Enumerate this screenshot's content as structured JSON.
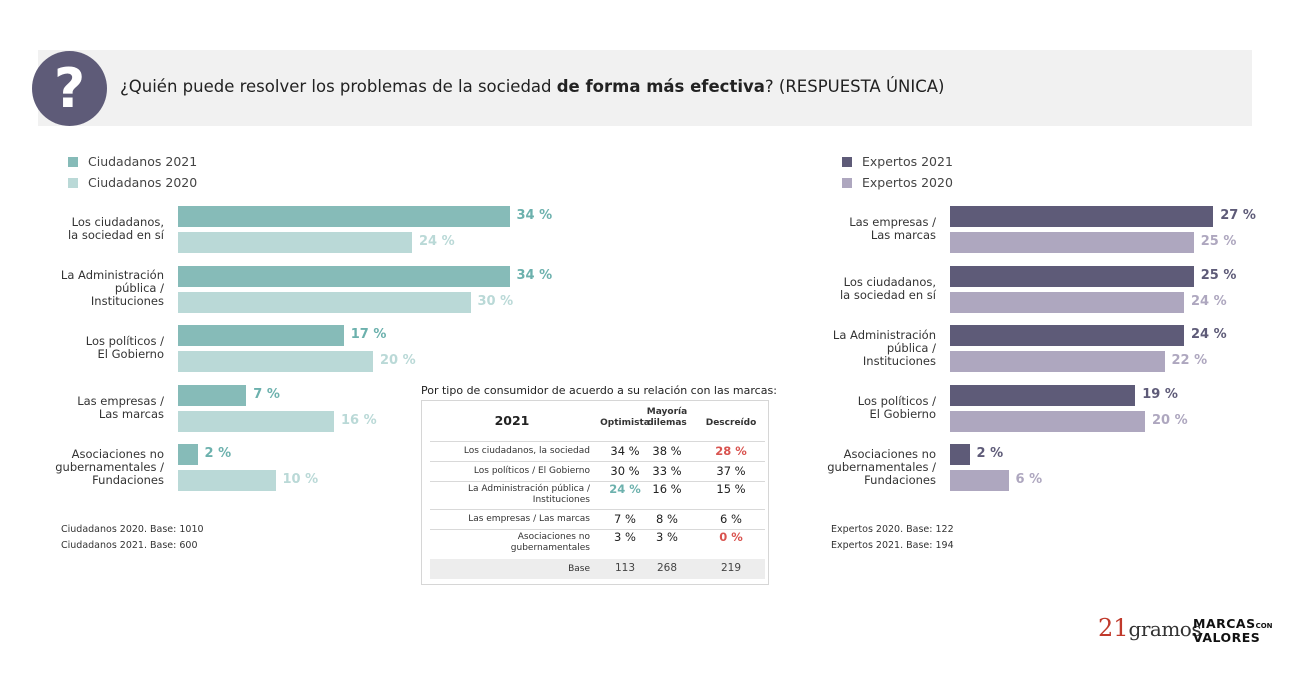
{
  "title": {
    "question_start": "¿Quién puede resolver los problemas de la sociedad ",
    "question_bold": "de forma más efectiva",
    "question_end": "? (RESPUESTA ÚNICA)",
    "icon": "question-mark-icon"
  },
  "colors": {
    "citizens_2021": "#86bbb8",
    "citizens_2020": "#bad9d7",
    "experts_2021": "#5e5b78",
    "experts_2020": "#aea7bf",
    "header_bg": "#f1f1f1",
    "highlight_red": "#d9534f",
    "highlight_teal": "#6cb1ad"
  },
  "chart_data": [
    {
      "type": "bar",
      "orientation": "horizontal",
      "categories": [
        "Los ciudadanos,\nla sociedad en sí",
        "La Administración\npública /\nInstituciones",
        "Los políticos /\nEl Gobierno",
        "Las empresas /\nLas marcas",
        "Asociaciones no\ngubernamentales /\nFundaciones"
      ],
      "series": [
        {
          "name": "Ciudadanos 2021",
          "values": [
            34,
            34,
            17,
            7,
            2
          ],
          "labels": [
            "34 %",
            "34 %",
            "17 %",
            "7 %",
            "2 %"
          ]
        },
        {
          "name": "Ciudadanos 2020",
          "values": [
            24,
            30,
            20,
            16,
            10
          ],
          "labels": [
            "24 %",
            "30 %",
            "20 %",
            "16 %",
            "10 %"
          ]
        }
      ],
      "legend_position": "top-left",
      "notes": [
        "Ciudadanos 2020. Base: 1010",
        "Ciudadanos 2021. Base: 600"
      ]
    },
    {
      "type": "bar",
      "orientation": "horizontal",
      "categories": [
        "Las empresas /\nLas marcas",
        "Los ciudadanos,\nla sociedad en sí",
        "La Administración\npública /\nInstituciones",
        "Los políticos /\nEl Gobierno",
        "Asociaciones no\ngubernamentales /\nFundaciones"
      ],
      "series": [
        {
          "name": "Expertos 2021",
          "values": [
            27,
            25,
            24,
            19,
            2
          ],
          "labels": [
            "27 %",
            "25 %",
            "24 %",
            "19 %",
            "2 %"
          ]
        },
        {
          "name": "Expertos 2020",
          "values": [
            25,
            24,
            22,
            20,
            6
          ],
          "labels": [
            "25 %",
            "24 %",
            "22 %",
            "20 %",
            "6 %"
          ]
        }
      ],
      "legend_position": "top-left",
      "notes": [
        "Expertos 2020. Base: 122",
        "Expertos 2021. Base: 194"
      ]
    },
    {
      "type": "table",
      "title": "Por tipo de consumidor de acuerdo a su relación con las marcas:",
      "corner": "2021",
      "columns": [
        "Optimista",
        "Mayoría\ndilemas",
        "Descreído"
      ],
      "rows": [
        {
          "label": "Los ciudadanos, la sociedad",
          "values": [
            "34 %",
            "38 %",
            "28 %"
          ],
          "highlight": [
            "",
            "",
            "red"
          ]
        },
        {
          "label": "Los políticos / El Gobierno",
          "values": [
            "30 %",
            "33 %",
            "37 %"
          ],
          "highlight": [
            "",
            "",
            ""
          ]
        },
        {
          "label": "La Administración pública /\nInstituciones",
          "values": [
            "24 %",
            "16 %",
            "15 %"
          ],
          "highlight": [
            "teal",
            "",
            ""
          ]
        },
        {
          "label": "Las empresas / Las marcas",
          "values": [
            "7 %",
            "8 %",
            "6 %"
          ],
          "highlight": [
            "",
            "",
            ""
          ]
        },
        {
          "label": "Asociaciones no\ngubernamentales",
          "values": [
            "3 %",
            "3 %",
            "0 %"
          ],
          "highlight": [
            "",
            "",
            "red"
          ]
        }
      ],
      "base": {
        "label": "Base",
        "values": [
          "113",
          "268",
          "219"
        ]
      }
    }
  ],
  "logos": {
    "logo_21gramos": {
      "num": "21",
      "word": "gramos"
    },
    "logo_marcas": {
      "line1": "MARCAS",
      "small": "CON",
      "line2": "VALORES"
    }
  }
}
